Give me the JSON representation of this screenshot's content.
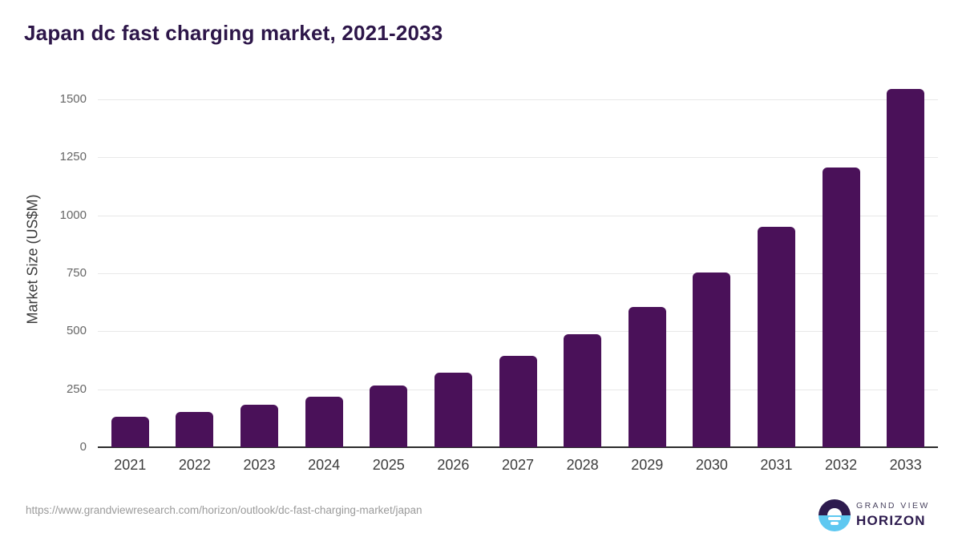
{
  "title": "Japan dc fast charging market, 2021-2033",
  "footer": {
    "source_url": "https://www.grandviewresearch.com/horizon/outlook/dc-fast-charging-market/japan"
  },
  "logo": {
    "name": "grand-view-horizon-logo",
    "line1": "GRAND VIEW",
    "line2": "HORIZON"
  },
  "colors": {
    "bar": "#4a1159",
    "title": "#2d1649",
    "grid": "#e8e8e8",
    "axis": "#2b2b2b",
    "tick_label": "#666666",
    "x_label": "#3c3c3c",
    "url": "#9a9a9a",
    "logo_dark": "#2d1b4e",
    "logo_blue": "#5ec8f1"
  },
  "chart_data": {
    "type": "bar",
    "title": "Japan dc fast charging market, 2021-2033",
    "categories": [
      "2021",
      "2022",
      "2023",
      "2024",
      "2025",
      "2026",
      "2027",
      "2028",
      "2029",
      "2030",
      "2031",
      "2032",
      "2033"
    ],
    "values": [
      131,
      153,
      183,
      216,
      265,
      320,
      393,
      486,
      605,
      753,
      949,
      1206,
      1543
    ],
    "xlabel": "",
    "ylabel": "Market Size (US$M)",
    "ylim": [
      0,
      1550
    ],
    "yticks": [
      0,
      250,
      500,
      750,
      1000,
      1250,
      1500
    ],
    "grid": true,
    "legend": false,
    "bar_color": "#4a1159"
  }
}
